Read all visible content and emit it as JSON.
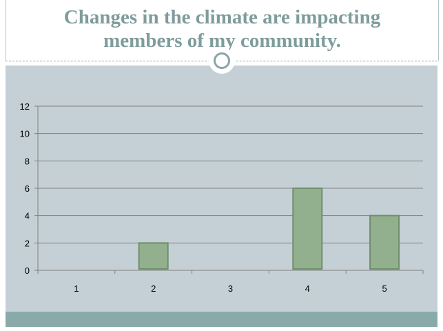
{
  "slide": {
    "title_line1": "Changes in the climate are impacting",
    "title_line2": "members of my community.",
    "title_color": "#7f9c9c",
    "panel_color": "#c5d0d6",
    "footer_color": "#8aaaa9"
  },
  "chart_data": {
    "type": "bar",
    "categories": [
      "1",
      "2",
      "3",
      "4",
      "5"
    ],
    "values": [
      0,
      2,
      0,
      6,
      4
    ],
    "ylim": [
      0,
      12
    ],
    "yticks": [
      "0",
      "2",
      "4",
      "6",
      "8",
      "10",
      "12"
    ],
    "title": "",
    "xlabel": "",
    "ylabel": "",
    "grid": true,
    "legend": "none",
    "bar_color": "#93b08e",
    "bar_edge_color": "#6e8f6b",
    "gridline_color": "#7f7f7f"
  }
}
